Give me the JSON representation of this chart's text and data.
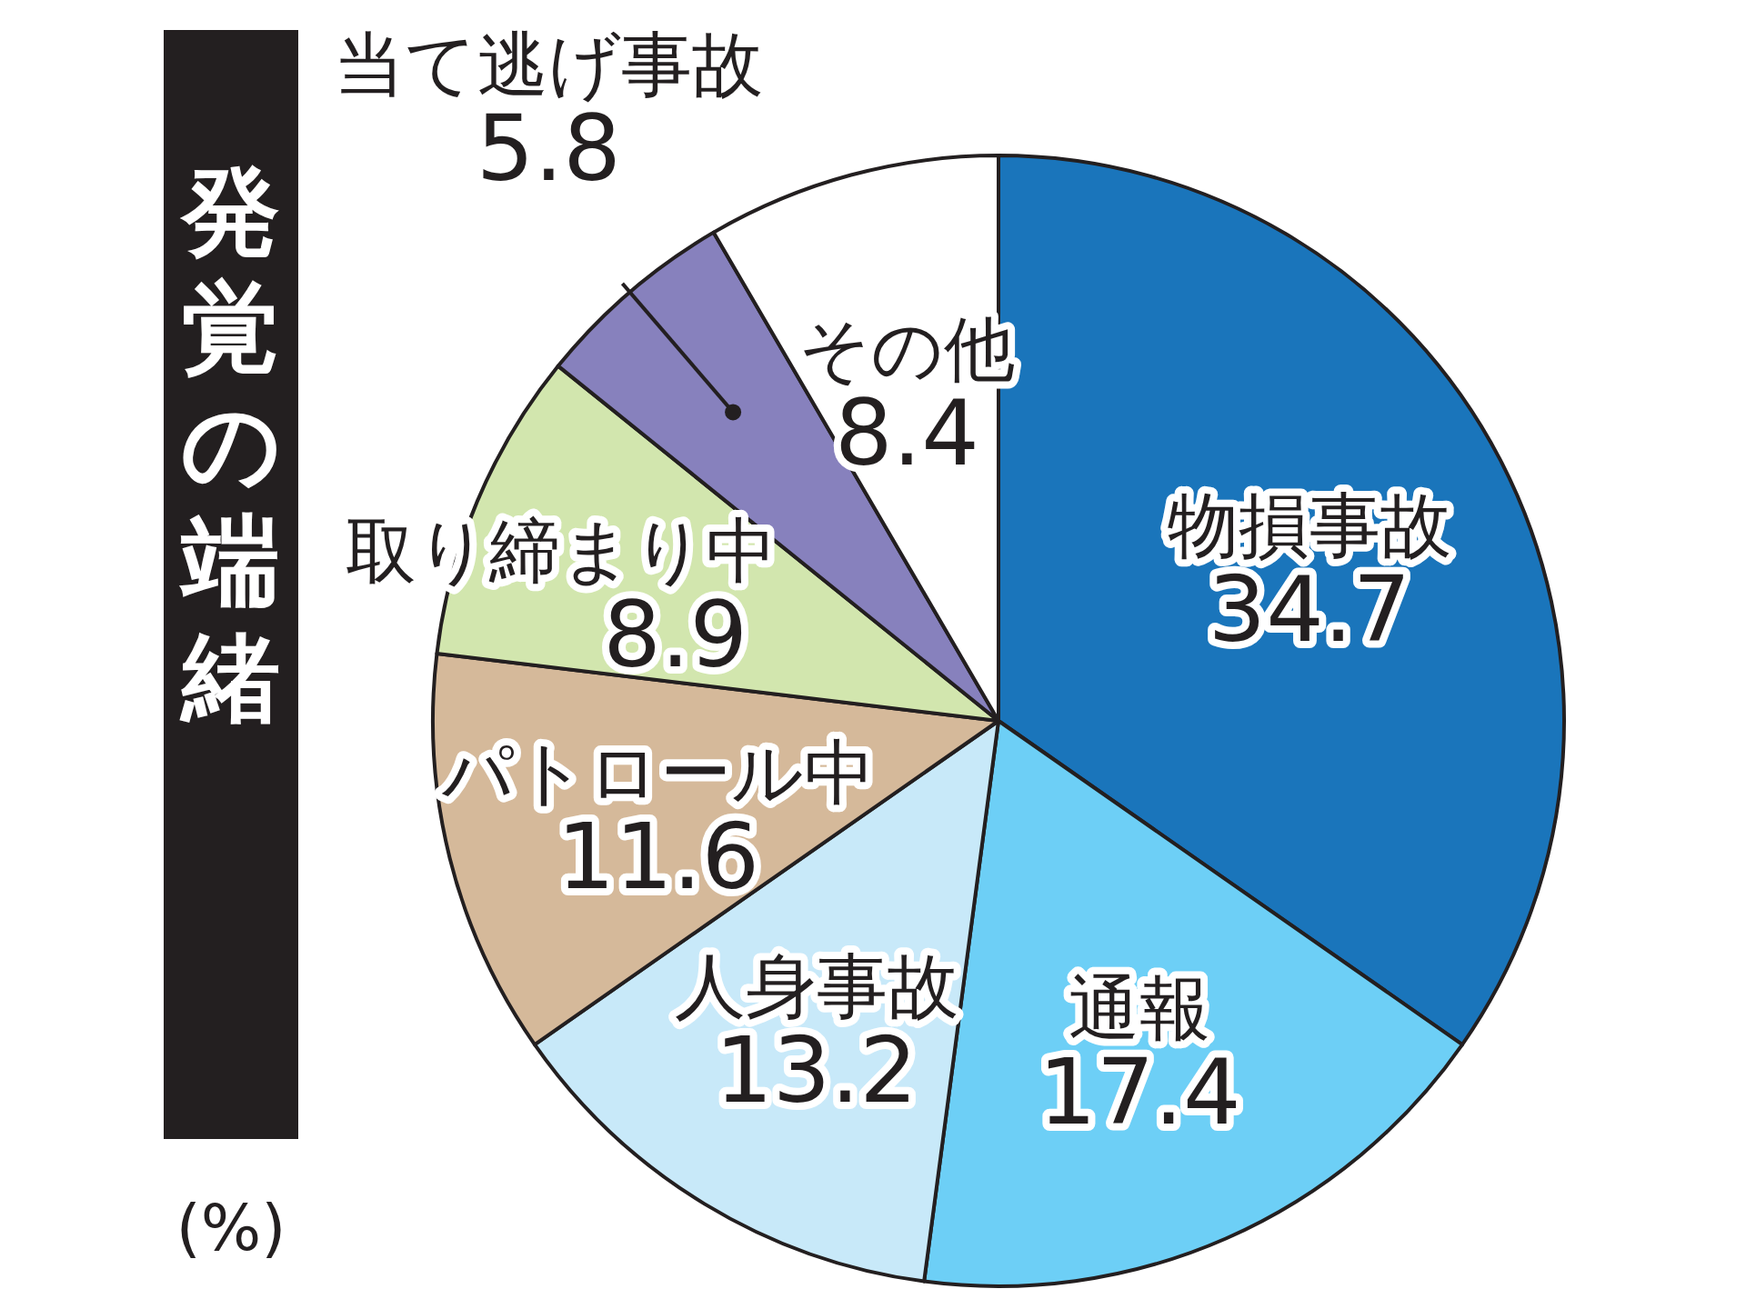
{
  "chart_data": {
    "type": "pie",
    "title": "発覚の端緒",
    "categories": [
      "物損事故",
      "通報",
      "人身事故",
      "パトロール中",
      "取り締まり中",
      "当て逃げ事故",
      "その他"
    ],
    "values": [
      34.7,
      17.4,
      13.2,
      11.6,
      8.9,
      5.8,
      8.4
    ],
    "colors": [
      "#1a75bb",
      "#6dcff6",
      "#c8e9f9",
      "#d5b99a",
      "#d2e6ae",
      "#8781bd",
      "#ffffff"
    ],
    "data_labels": true,
    "annotations": [
      "(%)"
    ]
  }
}
